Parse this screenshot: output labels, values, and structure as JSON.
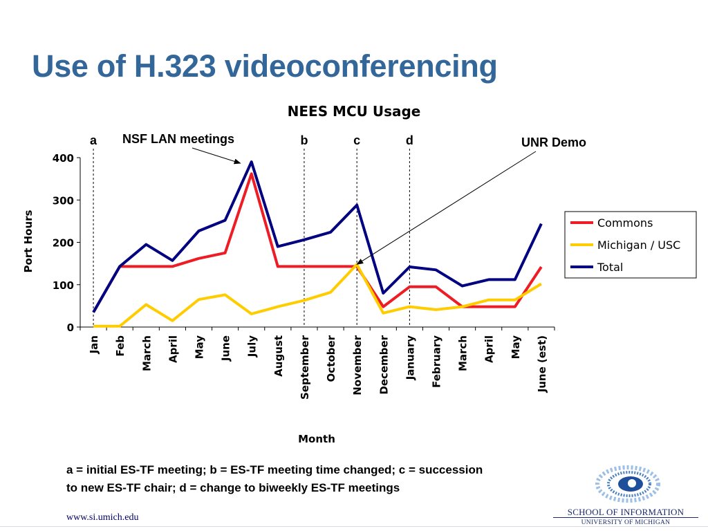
{
  "slide": {
    "title": "Use of H.323 videoconferencing",
    "caption_line1": "a = initial ES-TF meeting; b = ES-TF meeting time changed; c = succession",
    "caption_line2": "to new ES-TF chair; d = change to biweekly ES-TF meetings",
    "footer_url": "www.si.umich.edu",
    "logo_line1": "SCHOOL OF INFORMATION",
    "logo_line2": "UNIVERSITY OF MICHIGAN"
  },
  "chart_data": {
    "type": "line",
    "title": "NEES MCU Usage",
    "xlabel": "Month",
    "ylabel": "Port Hours",
    "ylim": [
      0,
      400
    ],
    "yticks": [
      0,
      100,
      200,
      300,
      400
    ],
    "grid": false,
    "legend_position": "right",
    "categories": [
      "Jan",
      "Feb",
      "March",
      "April",
      "May",
      "June",
      "July",
      "August",
      "September",
      "October",
      "November",
      "December",
      "January",
      "February",
      "March",
      "April",
      "May",
      "June (est)"
    ],
    "series": [
      {
        "name": "Commons",
        "color": "#ee1c25",
        "values": [
          35,
          143,
          143,
          143,
          162,
          175,
          362,
          143,
          143,
          143,
          143,
          48,
          95,
          95,
          48,
          48,
          48,
          142
        ]
      },
      {
        "name": "Michigan / USC",
        "color": "#ffcc00",
        "values": [
          2,
          2,
          53,
          15,
          65,
          76,
          31,
          48,
          63,
          82,
          148,
          33,
          48,
          41,
          48,
          64,
          64,
          102
        ]
      },
      {
        "name": "Total",
        "color": "#000080",
        "values": [
          35,
          143,
          195,
          157,
          227,
          252,
          390,
          190,
          206,
          224,
          288,
          80,
          142,
          135,
          97,
          112,
          112,
          244
        ]
      }
    ],
    "markers": [
      {
        "label": "a",
        "category_index": 0
      },
      {
        "label": "b",
        "category_index": 8
      },
      {
        "label": "c",
        "category_index": 10
      },
      {
        "label": "d",
        "category_index": 12
      }
    ],
    "annotations": [
      {
        "text": "NSF LAN meetings",
        "points_to_category_index": 6,
        "points_to_value": 390
      },
      {
        "text": "UNR Demo",
        "points_to_category_index": 10,
        "points_to_value": 148
      }
    ]
  }
}
